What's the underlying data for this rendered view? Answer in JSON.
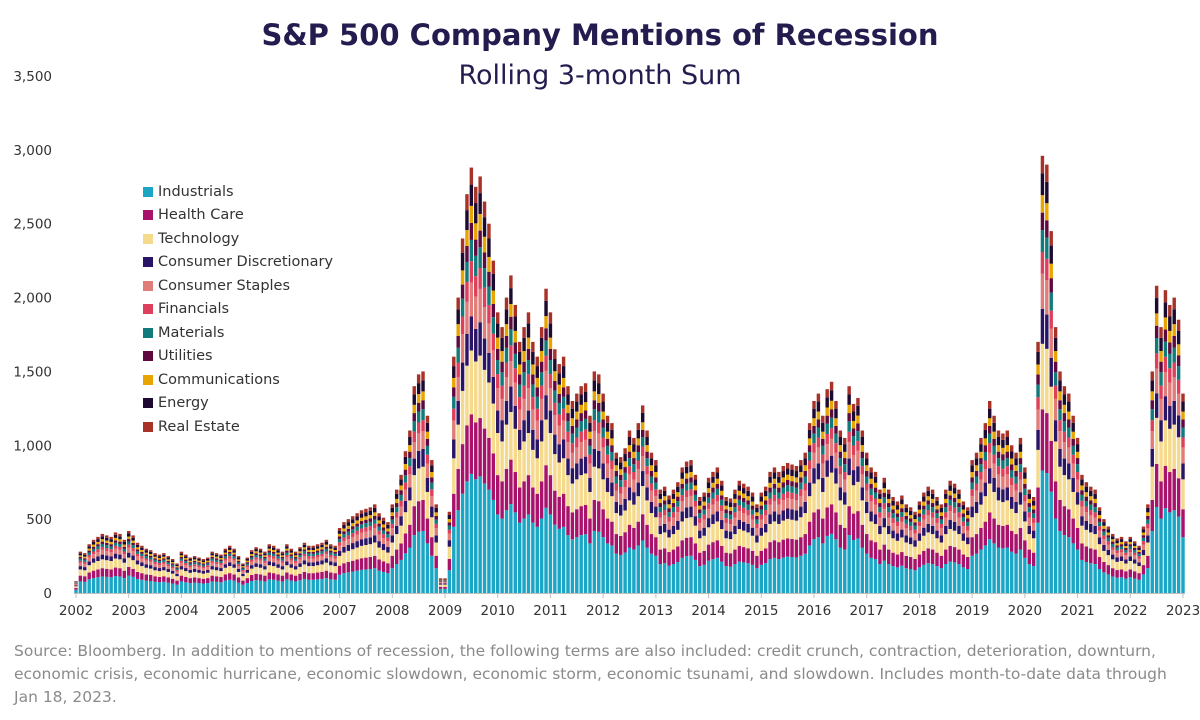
{
  "chart_data": {
    "type": "bar",
    "stacked": true,
    "title": "S&P 500 Company Mentions of Recession",
    "subtitle": "Rolling 3-month Sum",
    "xlabel": "",
    "ylabel": "",
    "ylim": [
      0,
      3500
    ],
    "yticks": [
      "0",
      "500",
      "1,000",
      "1,500",
      "2,000",
      "2,500",
      "3,000",
      "3,500"
    ],
    "xticks": [
      "2002",
      "2003",
      "2004",
      "2005",
      "2006",
      "2007",
      "2008",
      "2009",
      "2010",
      "2011",
      "2012",
      "2013",
      "2014",
      "2015",
      "2016",
      "2017",
      "2018",
      "2019",
      "2020",
      "2021",
      "2022",
      "2023"
    ],
    "x_start": "2002-01",
    "x_end": "2023-01",
    "grid": false,
    "legend_position": "top-left",
    "series": [
      {
        "name": "Industrials",
        "color": "#1aa6c4",
        "share": 0.28
      },
      {
        "name": "Health Care",
        "color": "#a8126a",
        "share": 0.14
      },
      {
        "name": "Technology",
        "color": "#f5d98c",
        "share": 0.15
      },
      {
        "name": "Consumer Discretionary",
        "color": "#2a1466",
        "share": 0.08
      },
      {
        "name": "Consumer Staples",
        "color": "#e07d7a",
        "share": 0.08
      },
      {
        "name": "Financials",
        "color": "#de3f5a",
        "share": 0.05
      },
      {
        "name": "Materials",
        "color": "#117a7a",
        "share": 0.05
      },
      {
        "name": "Utilities",
        "color": "#5e0a3e",
        "share": 0.04
      },
      {
        "name": "Communications",
        "color": "#e8a400",
        "share": 0.04
      },
      {
        "name": "Energy",
        "color": "#1c0a30",
        "share": 0.05
      },
      {
        "name": "Real Estate",
        "color": "#a83228",
        "share": 0.04
      }
    ],
    "totals": [
      [
        "2002-01",
        80
      ],
      [
        "2002-02",
        280
      ],
      [
        "2002-03",
        270
      ],
      [
        "2002-04",
        330
      ],
      [
        "2002-05",
        360
      ],
      [
        "2002-06",
        380
      ],
      [
        "2002-07",
        400
      ],
      [
        "2002-08",
        390
      ],
      [
        "2002-09",
        380
      ],
      [
        "2002-10",
        410
      ],
      [
        "2002-11",
        400
      ],
      [
        "2002-12",
        360
      ],
      [
        "2003-01",
        420
      ],
      [
        "2003-02",
        390
      ],
      [
        "2003-03",
        340
      ],
      [
        "2003-04",
        320
      ],
      [
        "2003-05",
        300
      ],
      [
        "2003-06",
        290
      ],
      [
        "2003-07",
        270
      ],
      [
        "2003-08",
        260
      ],
      [
        "2003-09",
        270
      ],
      [
        "2003-10",
        250
      ],
      [
        "2003-11",
        230
      ],
      [
        "2003-12",
        200
      ],
      [
        "2004-01",
        280
      ],
      [
        "2004-02",
        260
      ],
      [
        "2004-03",
        240
      ],
      [
        "2004-04",
        250
      ],
      [
        "2004-05",
        240
      ],
      [
        "2004-06",
        230
      ],
      [
        "2004-07",
        240
      ],
      [
        "2004-08",
        280
      ],
      [
        "2004-09",
        270
      ],
      [
        "2004-10",
        260
      ],
      [
        "2004-11",
        300
      ],
      [
        "2004-12",
        320
      ],
      [
        "2005-01",
        300
      ],
      [
        "2005-02",
        250
      ],
      [
        "2005-03",
        200
      ],
      [
        "2005-04",
        240
      ],
      [
        "2005-05",
        290
      ],
      [
        "2005-06",
        310
      ],
      [
        "2005-07",
        300
      ],
      [
        "2005-08",
        280
      ],
      [
        "2005-09",
        330
      ],
      [
        "2005-10",
        320
      ],
      [
        "2005-11",
        300
      ],
      [
        "2005-12",
        280
      ],
      [
        "2006-01",
        330
      ],
      [
        "2006-02",
        300
      ],
      [
        "2006-03",
        280
      ],
      [
        "2006-04",
        310
      ],
      [
        "2006-05",
        340
      ],
      [
        "2006-06",
        320
      ],
      [
        "2006-07",
        320
      ],
      [
        "2006-08",
        330
      ],
      [
        "2006-09",
        340
      ],
      [
        "2006-10",
        360
      ],
      [
        "2006-11",
        330
      ],
      [
        "2006-12",
        320
      ],
      [
        "2007-01",
        440
      ],
      [
        "2007-02",
        480
      ],
      [
        "2007-03",
        500
      ],
      [
        "2007-04",
        520
      ],
      [
        "2007-05",
        540
      ],
      [
        "2007-06",
        560
      ],
      [
        "2007-07",
        570
      ],
      [
        "2007-08",
        580
      ],
      [
        "2007-09",
        600
      ],
      [
        "2007-10",
        540
      ],
      [
        "2007-11",
        510
      ],
      [
        "2007-12",
        480
      ],
      [
        "2008-01",
        600
      ],
      [
        "2008-02",
        700
      ],
      [
        "2008-03",
        800
      ],
      [
        "2008-04",
        960
      ],
      [
        "2008-05",
        1100
      ],
      [
        "2008-06",
        1400
      ],
      [
        "2008-07",
        1480
      ],
      [
        "2008-08",
        1500
      ],
      [
        "2008-09",
        1200
      ],
      [
        "2008-10",
        900
      ],
      [
        "2008-11",
        600
      ],
      [
        "2008-12",
        100
      ],
      [
        "2009-01",
        100
      ],
      [
        "2009-02",
        550
      ],
      [
        "2009-03",
        1600
      ],
      [
        "2009-04",
        2000
      ],
      [
        "2009-05",
        2400
      ],
      [
        "2009-06",
        2700
      ],
      [
        "2009-07",
        2880
      ],
      [
        "2009-08",
        2750
      ],
      [
        "2009-09",
        2820
      ],
      [
        "2009-10",
        2650
      ],
      [
        "2009-11",
        2500
      ],
      [
        "2009-12",
        2250
      ],
      [
        "2010-01",
        1900
      ],
      [
        "2010-02",
        1800
      ],
      [
        "2010-03",
        2000
      ],
      [
        "2010-04",
        2150
      ],
      [
        "2010-05",
        1950
      ],
      [
        "2010-06",
        1700
      ],
      [
        "2010-07",
        1800
      ],
      [
        "2010-08",
        1900
      ],
      [
        "2010-09",
        1700
      ],
      [
        "2010-10",
        1600
      ],
      [
        "2010-11",
        1800
      ],
      [
        "2010-12",
        2060
      ],
      [
        "2011-01",
        1900
      ],
      [
        "2011-02",
        1650
      ],
      [
        "2011-03",
        1550
      ],
      [
        "2011-04",
        1600
      ],
      [
        "2011-05",
        1400
      ],
      [
        "2011-06",
        1300
      ],
      [
        "2011-07",
        1350
      ],
      [
        "2011-08",
        1400
      ],
      [
        "2011-09",
        1420
      ],
      [
        "2011-10",
        1200
      ],
      [
        "2011-11",
        1500
      ],
      [
        "2011-12",
        1480
      ],
      [
        "2012-01",
        1350
      ],
      [
        "2012-02",
        1200
      ],
      [
        "2012-03",
        1150
      ],
      [
        "2012-04",
        950
      ],
      [
        "2012-05",
        920
      ],
      [
        "2012-06",
        980
      ],
      [
        "2012-07",
        1100
      ],
      [
        "2012-08",
        1050
      ],
      [
        "2012-09",
        1150
      ],
      [
        "2012-10",
        1270
      ],
      [
        "2012-11",
        1100
      ],
      [
        "2012-12",
        950
      ],
      [
        "2013-01",
        900
      ],
      [
        "2013-02",
        700
      ],
      [
        "2013-03",
        720
      ],
      [
        "2013-04",
        660
      ],
      [
        "2013-05",
        700
      ],
      [
        "2013-06",
        750
      ],
      [
        "2013-07",
        850
      ],
      [
        "2013-08",
        890
      ],
      [
        "2013-09",
        900
      ],
      [
        "2013-10",
        800
      ],
      [
        "2013-11",
        650
      ],
      [
        "2013-12",
        680
      ],
      [
        "2014-01",
        780
      ],
      [
        "2014-02",
        820
      ],
      [
        "2014-03",
        850
      ],
      [
        "2014-04",
        760
      ],
      [
        "2014-05",
        650
      ],
      [
        "2014-06",
        640
      ],
      [
        "2014-07",
        700
      ],
      [
        "2014-08",
        760
      ],
      [
        "2014-09",
        740
      ],
      [
        "2014-10",
        720
      ],
      [
        "2014-11",
        680
      ],
      [
        "2014-12",
        600
      ],
      [
        "2015-01",
        680
      ],
      [
        "2015-02",
        720
      ],
      [
        "2015-03",
        820
      ],
      [
        "2015-04",
        850
      ],
      [
        "2015-05",
        820
      ],
      [
        "2015-06",
        860
      ],
      [
        "2015-07",
        880
      ],
      [
        "2015-08",
        870
      ],
      [
        "2015-09",
        860
      ],
      [
        "2015-10",
        900
      ],
      [
        "2015-11",
        950
      ],
      [
        "2015-12",
        1150
      ],
      [
        "2016-01",
        1300
      ],
      [
        "2016-02",
        1350
      ],
      [
        "2016-03",
        1200
      ],
      [
        "2016-04",
        1380
      ],
      [
        "2016-05",
        1430
      ],
      [
        "2016-06",
        1300
      ],
      [
        "2016-07",
        1100
      ],
      [
        "2016-08",
        1050
      ],
      [
        "2016-09",
        1400
      ],
      [
        "2016-10",
        1280
      ],
      [
        "2016-11",
        1320
      ],
      [
        "2016-12",
        1100
      ],
      [
        "2017-01",
        950
      ],
      [
        "2017-02",
        850
      ],
      [
        "2017-03",
        820
      ],
      [
        "2017-04",
        700
      ],
      [
        "2017-05",
        780
      ],
      [
        "2017-06",
        700
      ],
      [
        "2017-07",
        650
      ],
      [
        "2017-08",
        620
      ],
      [
        "2017-09",
        660
      ],
      [
        "2017-10",
        600
      ],
      [
        "2017-11",
        580
      ],
      [
        "2017-12",
        550
      ],
      [
        "2018-01",
        620
      ],
      [
        "2018-02",
        680
      ],
      [
        "2018-03",
        720
      ],
      [
        "2018-04",
        700
      ],
      [
        "2018-05",
        650
      ],
      [
        "2018-06",
        600
      ],
      [
        "2018-07",
        700
      ],
      [
        "2018-08",
        760
      ],
      [
        "2018-09",
        740
      ],
      [
        "2018-10",
        700
      ],
      [
        "2018-11",
        620
      ],
      [
        "2018-12",
        580
      ],
      [
        "2019-01",
        900
      ],
      [
        "2019-02",
        950
      ],
      [
        "2019-03",
        1050
      ],
      [
        "2019-04",
        1150
      ],
      [
        "2019-05",
        1300
      ],
      [
        "2019-06",
        1200
      ],
      [
        "2019-07",
        1100
      ],
      [
        "2019-08",
        1080
      ],
      [
        "2019-09",
        1100
      ],
      [
        "2019-10",
        1000
      ],
      [
        "2019-11",
        950
      ],
      [
        "2019-12",
        1050
      ],
      [
        "2020-01",
        850
      ],
      [
        "2020-02",
        700
      ],
      [
        "2020-03",
        650
      ],
      [
        "2020-04",
        1700
      ],
      [
        "2020-05",
        2960
      ],
      [
        "2020-06",
        2900
      ],
      [
        "2020-07",
        2450
      ],
      [
        "2020-08",
        1800
      ],
      [
        "2020-09",
        1500
      ],
      [
        "2020-10",
        1400
      ],
      [
        "2020-11",
        1350
      ],
      [
        "2020-12",
        1200
      ],
      [
        "2021-01",
        1050
      ],
      [
        "2021-02",
        800
      ],
      [
        "2021-03",
        750
      ],
      [
        "2021-04",
        720
      ],
      [
        "2021-05",
        700
      ],
      [
        "2021-06",
        580
      ],
      [
        "2021-07",
        500
      ],
      [
        "2021-08",
        450
      ],
      [
        "2021-09",
        400
      ],
      [
        "2021-10",
        370
      ],
      [
        "2021-11",
        380
      ],
      [
        "2021-12",
        350
      ],
      [
        "2022-01",
        380
      ],
      [
        "2022-02",
        350
      ],
      [
        "2022-03",
        320
      ],
      [
        "2022-04",
        450
      ],
      [
        "2022-05",
        600
      ],
      [
        "2022-06",
        1500
      ],
      [
        "2022-07",
        2080
      ],
      [
        "2022-08",
        1800
      ],
      [
        "2022-09",
        2050
      ],
      [
        "2022-10",
        1950
      ],
      [
        "2022-11",
        2000
      ],
      [
        "2022-12",
        1850
      ],
      [
        "2023-01",
        1350
      ]
    ]
  },
  "source_note": "Source: Bloomberg. In addition to mentions of recession, the following terms are also included: credit crunch, contraction, deterioration, downturn, economic crisis, economic hurricane, economic slowdown, economic storm, economic tsunami, and slowdown. Includes month-to-date data through Jan 18, 2023."
}
